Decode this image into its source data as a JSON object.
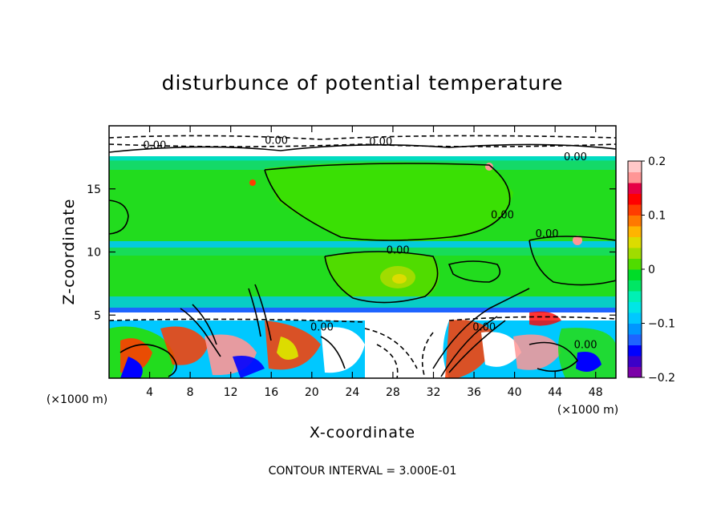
{
  "chart_data": {
    "type": "heatmap",
    "title": "disturbunce of potential temperature",
    "xlabel": "X-coordinate",
    "ylabel": "Z-coordinate",
    "x_unit": "(×1000 m)",
    "y_unit": "(×1000 m)",
    "xlim": [
      0,
      50
    ],
    "ylim": [
      0,
      20
    ],
    "x_ticks": [
      4,
      8,
      12,
      16,
      20,
      24,
      28,
      32,
      36,
      40,
      44,
      48
    ],
    "y_ticks": [
      5,
      10,
      15
    ],
    "colorbar": {
      "min": -0.2,
      "max": 0.2,
      "ticks": [
        0.2,
        0.1,
        0,
        -0.1,
        -0.2
      ],
      "tick_labels": [
        "0.2",
        "0.1",
        "0",
        "−0.1",
        "−0.2"
      ],
      "colors": [
        "#7b00a8",
        "#3c00c8",
        "#0000ff",
        "#1e64ff",
        "#0096ff",
        "#00c8ff",
        "#00e6e6",
        "#00f0b4",
        "#00e664",
        "#00dc28",
        "#50dc00",
        "#a0dc00",
        "#dcdc00",
        "#ffb400",
        "#ff7800",
        "#ff3c00",
        "#ff0000",
        "#e60046",
        "#ff9696",
        "#ffc8c8"
      ]
    },
    "contour_interval": "CONTOUR INTERVAL = 3.000E-01",
    "contour_labels": [
      {
        "text": "0.00",
        "x": 4.5,
        "z": 18.5
      },
      {
        "text": "0.00",
        "x": 16.5,
        "z": 18.9
      },
      {
        "text": "0.00",
        "x": 26.8,
        "z": 18.8
      },
      {
        "text": "0.00",
        "x": 46,
        "z": 17.6
      },
      {
        "text": "0.00",
        "x": 38.8,
        "z": 13
      },
      {
        "text": "0.00",
        "x": 43.2,
        "z": 11.5
      },
      {
        "text": "0.00",
        "x": 28.5,
        "z": 10.2
      },
      {
        "text": "0.00",
        "x": 21,
        "z": 4.1
      },
      {
        "text": "0.00",
        "x": 37,
        "z": 4.1
      },
      {
        "text": "0.00",
        "x": 47,
        "z": 2.7
      }
    ]
  }
}
